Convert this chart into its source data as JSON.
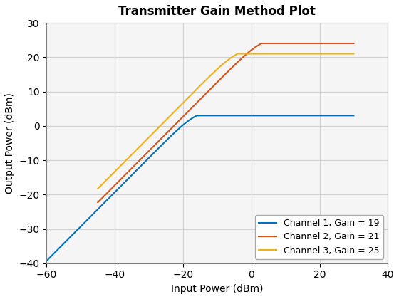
{
  "title": "Transmitter Gain Method Plot",
  "xlabel": "Input Power (dBm)",
  "ylabel": "Output Power (dBm)",
  "xlim": [
    -60,
    40
  ],
  "ylim": [
    -40,
    30
  ],
  "xticks": [
    -60,
    -40,
    -20,
    0,
    20,
    40
  ],
  "yticks": [
    -40,
    -30,
    -20,
    -10,
    0,
    10,
    20,
    30
  ],
  "channels": [
    {
      "label": "Channel 1, Gain = 19",
      "color": "#0072BD",
      "gain": 19,
      "p_sat": 3.0,
      "x_start": -60,
      "x_end": 30,
      "x_sat": -16.0
    },
    {
      "label": "Channel 2, Gain = 21",
      "color": "#D95319",
      "gain": 21,
      "p_sat": 24.0,
      "x_start": -45,
      "x_end": 30,
      "x_sat": 3.0
    },
    {
      "label": "Channel 3, Gain = 25",
      "color": "#EDB120",
      "gain": 25,
      "p_sat": 21.0,
      "x_start": -45,
      "x_end": 30,
      "x_sat": -4.0
    }
  ],
  "legend_loc": "lower right",
  "grid": true,
  "axes_facecolor": "#f5f5f5",
  "fig_facecolor": "#ffffff",
  "linewidth": 1.5,
  "title_fontsize": 12,
  "label_fontsize": 10,
  "tick_fontsize": 10,
  "legend_fontsize": 9
}
